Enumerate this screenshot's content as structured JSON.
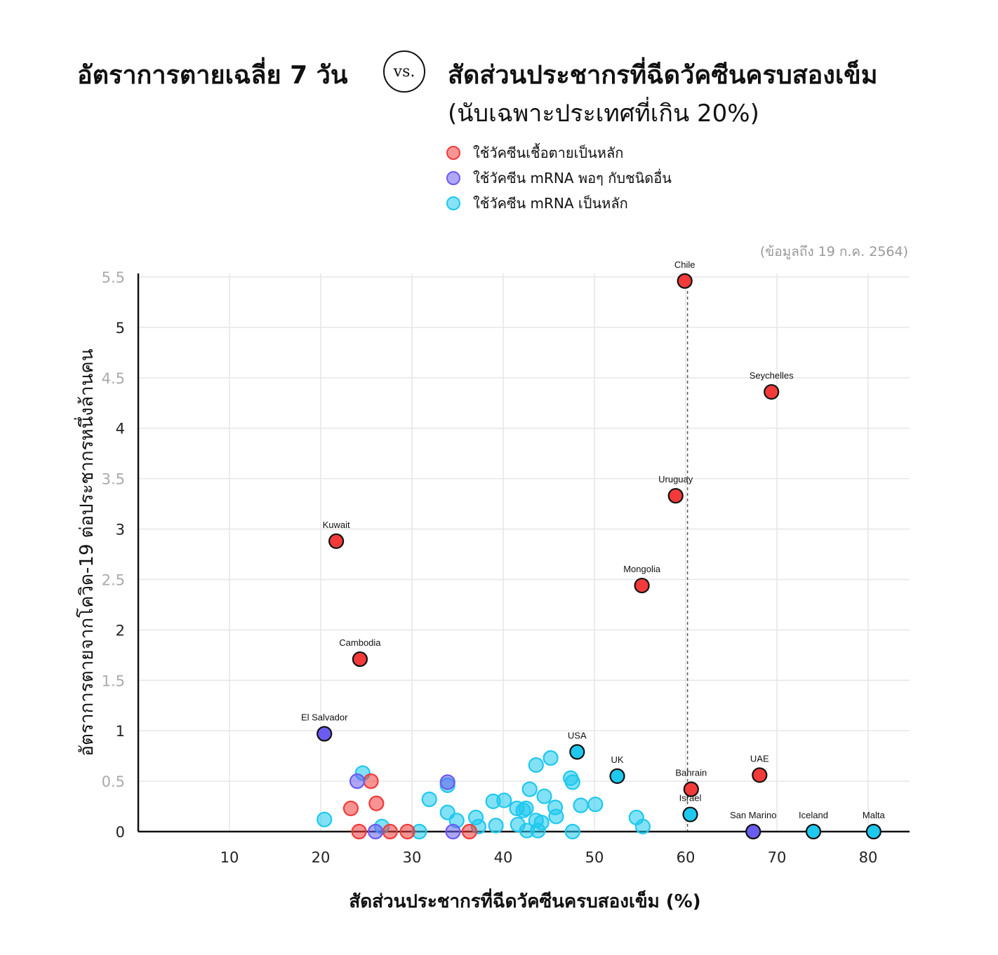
{
  "header": {
    "title_left": "อัตราการตายเฉลี่ย 7 วัน",
    "vs": "vs.",
    "title_right": "สัดส่วนประชากรที่ฉีดวัคซีนครบสองเข็ม",
    "subtitle": "(นับเฉพาะประเทศที่เกิน 20%)"
  },
  "legend": [
    {
      "label": "ใช้วัคซีนเชื้อตายเป็นหลัก",
      "key": "inactivated"
    },
    {
      "label": "ใช้วัคซีน mRNA พอๆ กับชนิดอื่น",
      "key": "mixed"
    },
    {
      "label": "ใช้วัคซีน mRNA เป็นหลัก",
      "key": "mrna"
    }
  ],
  "note": "(ข้อมูลถึง 19 ก.ค. 2564)",
  "colors": {
    "inactivated": "#f23a3a",
    "mixed": "#6a5cf0",
    "mrna": "#1ec8ef",
    "grid": "#e6e6e6",
    "refline": "#555555"
  },
  "chart_data": {
    "type": "scatter",
    "title": "อัตราการตายเฉลี่ย 7 วัน vs. สัดส่วนประชากรที่ฉีดวัคซีนครบสองเข็ม",
    "xlabel": "สัดส่วนประชากรที่ฉีดวัคซีนครบสองเข็ม (%)",
    "ylabel": "อัตราการตายจากโควิด-19 ต่อประชากรหนึ่งล้านคน",
    "xlim": [
      0,
      85
    ],
    "ylim": [
      0,
      5.5
    ],
    "x_ticks": [
      "10",
      "20",
      "30",
      "40",
      "50",
      "60",
      "70",
      "80"
    ],
    "x_tick_values": [
      10,
      20,
      30,
      40,
      50,
      60,
      70,
      80
    ],
    "y_ticks": [
      "0",
      "0.5",
      "1",
      "1.5",
      "2",
      "2.5",
      "3",
      "3.5",
      "4",
      "4.5",
      "5",
      "5.5"
    ],
    "y_tick_values": [
      0,
      0.5,
      1,
      1.5,
      2,
      2.5,
      3,
      3.5,
      4,
      4.5,
      5,
      5.5
    ],
    "reference_line_x": 60.2,
    "labeled_points": [
      {
        "name": "Chile",
        "x": 59.9,
        "y": 5.46,
        "group": "inactivated"
      },
      {
        "name": "Seychelles",
        "x": 69.4,
        "y": 4.36,
        "group": "inactivated"
      },
      {
        "name": "Uruguay",
        "x": 58.9,
        "y": 3.33,
        "group": "inactivated"
      },
      {
        "name": "Kuwait",
        "x": 21.7,
        "y": 2.88,
        "group": "inactivated"
      },
      {
        "name": "Mongolia",
        "x": 55.2,
        "y": 2.44,
        "group": "inactivated"
      },
      {
        "name": "Cambodia",
        "x": 24.3,
        "y": 1.71,
        "group": "inactivated"
      },
      {
        "name": "El Salvador",
        "x": 20.4,
        "y": 0.97,
        "group": "mixed"
      },
      {
        "name": "USA",
        "x": 48.1,
        "y": 0.79,
        "group": "mrna"
      },
      {
        "name": "UK",
        "x": 52.5,
        "y": 0.55,
        "group": "mrna"
      },
      {
        "name": "UAE",
        "x": 68.1,
        "y": 0.56,
        "group": "inactivated"
      },
      {
        "name": "Bahrain",
        "x": 60.6,
        "y": 0.42,
        "group": "inactivated"
      },
      {
        "name": "Israel",
        "x": 60.5,
        "y": 0.17,
        "group": "mrna"
      },
      {
        "name": "San Marino",
        "x": 67.4,
        "y": 0.0,
        "group": "mixed"
      },
      {
        "name": "Iceland",
        "x": 74.0,
        "y": 0.0,
        "group": "mrna"
      },
      {
        "name": "Malta",
        "x": 80.6,
        "y": 0.0,
        "group": "mrna"
      }
    ],
    "other_points": [
      {
        "x": 20.4,
        "y": 0.12,
        "group": "mrna"
      },
      {
        "x": 24.6,
        "y": 0.58,
        "group": "mrna"
      },
      {
        "x": 26.7,
        "y": 0.05,
        "group": "mrna"
      },
      {
        "x": 30.8,
        "y": 0.0,
        "group": "mrna"
      },
      {
        "x": 31.9,
        "y": 0.32,
        "group": "mrna"
      },
      {
        "x": 33.9,
        "y": 0.46,
        "group": "mrna"
      },
      {
        "x": 33.9,
        "y": 0.19,
        "group": "mrna"
      },
      {
        "x": 34.9,
        "y": 0.11,
        "group": "mrna"
      },
      {
        "x": 37.0,
        "y": 0.14,
        "group": "mrna"
      },
      {
        "x": 37.3,
        "y": 0.05,
        "group": "mrna"
      },
      {
        "x": 38.9,
        "y": 0.3,
        "group": "mrna"
      },
      {
        "x": 39.2,
        "y": 0.06,
        "group": "mrna"
      },
      {
        "x": 40.1,
        "y": 0.31,
        "group": "mrna"
      },
      {
        "x": 41.5,
        "y": 0.23,
        "group": "mrna"
      },
      {
        "x": 41.6,
        "y": 0.07,
        "group": "mrna"
      },
      {
        "x": 42.2,
        "y": 0.21,
        "group": "mrna"
      },
      {
        "x": 42.5,
        "y": 0.23,
        "group": "mrna"
      },
      {
        "x": 42.6,
        "y": 0.01,
        "group": "mrna"
      },
      {
        "x": 42.9,
        "y": 0.42,
        "group": "mrna"
      },
      {
        "x": 43.6,
        "y": 0.66,
        "group": "mrna"
      },
      {
        "x": 43.6,
        "y": 0.11,
        "group": "mrna"
      },
      {
        "x": 43.8,
        "y": 0.01,
        "group": "mrna"
      },
      {
        "x": 44.2,
        "y": 0.09,
        "group": "mrna"
      },
      {
        "x": 44.5,
        "y": 0.35,
        "group": "mrna"
      },
      {
        "x": 45.2,
        "y": 0.73,
        "group": "mrna"
      },
      {
        "x": 45.7,
        "y": 0.24,
        "group": "mrna"
      },
      {
        "x": 45.8,
        "y": 0.15,
        "group": "mrna"
      },
      {
        "x": 47.4,
        "y": 0.53,
        "group": "mrna"
      },
      {
        "x": 47.6,
        "y": 0.49,
        "group": "mrna"
      },
      {
        "x": 47.6,
        "y": 0.0,
        "group": "mrna"
      },
      {
        "x": 48.5,
        "y": 0.26,
        "group": "mrna"
      },
      {
        "x": 50.1,
        "y": 0.27,
        "group": "mrna"
      },
      {
        "x": 54.6,
        "y": 0.14,
        "group": "mrna"
      },
      {
        "x": 55.3,
        "y": 0.05,
        "group": "mrna"
      },
      {
        "x": 23.3,
        "y": 0.23,
        "group": "inactivated"
      },
      {
        "x": 24.2,
        "y": 0.0,
        "group": "inactivated"
      },
      {
        "x": 25.5,
        "y": 0.5,
        "group": "inactivated"
      },
      {
        "x": 26.1,
        "y": 0.28,
        "group": "inactivated"
      },
      {
        "x": 27.6,
        "y": 0.0,
        "group": "inactivated"
      },
      {
        "x": 29.5,
        "y": 0.0,
        "group": "inactivated"
      },
      {
        "x": 36.3,
        "y": 0.0,
        "group": "inactivated"
      },
      {
        "x": 24.0,
        "y": 0.5,
        "group": "mixed"
      },
      {
        "x": 26.0,
        "y": 0.0,
        "group": "mixed"
      },
      {
        "x": 33.9,
        "y": 0.49,
        "group": "mixed"
      },
      {
        "x": 34.5,
        "y": 0.0,
        "group": "mixed"
      }
    ]
  }
}
